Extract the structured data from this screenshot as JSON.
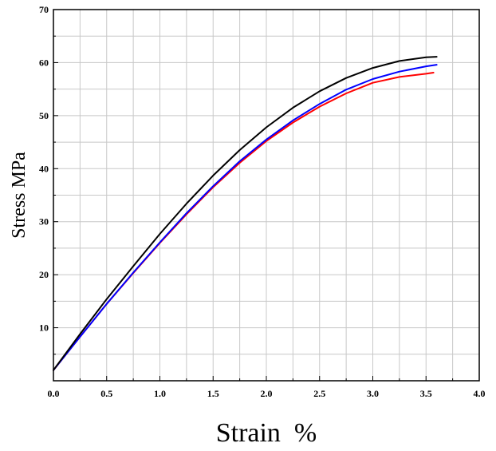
{
  "chart_data": {
    "type": "line",
    "title": "",
    "xlabel": "Strain  %",
    "ylabel": "Stress MPa",
    "xlim": [
      0,
      4.0
    ],
    "ylim": [
      0,
      70
    ],
    "x_ticks": [
      0.0,
      0.5,
      1.0,
      1.5,
      2.0,
      2.5,
      3.0,
      3.5,
      4.0
    ],
    "x_tick_labels": [
      "0.0",
      "0.5",
      "1.0",
      "1.5",
      "2.0",
      "2.5",
      "3.0",
      "3.5",
      "4.0"
    ],
    "y_ticks": [
      10,
      20,
      30,
      40,
      50,
      60,
      70
    ],
    "y_tick_labels": [
      "10",
      "20",
      "30",
      "40",
      "50",
      "60",
      "70"
    ],
    "grid": true,
    "legend": "none",
    "series": [
      {
        "color": "#ff0000",
        "x": [
          0.0,
          0.25,
          0.5,
          0.75,
          1.0,
          1.25,
          1.5,
          1.75,
          2.0,
          2.25,
          2.5,
          2.75,
          3.0,
          3.25,
          3.5,
          3.57
        ],
        "y": [
          2.0,
          8.3,
          14.5,
          20.3,
          26.0,
          31.4,
          36.5,
          41.1,
          45.2,
          48.7,
          51.7,
          54.2,
          56.2,
          57.3,
          57.9,
          58.1
        ]
      },
      {
        "color": "#0000ff",
        "x": [
          0.0,
          0.25,
          0.5,
          0.75,
          1.0,
          1.25,
          1.5,
          1.75,
          2.0,
          2.25,
          2.5,
          2.75,
          3.0,
          3.25,
          3.5,
          3.6
        ],
        "y": [
          2.0,
          8.3,
          14.5,
          20.4,
          26.1,
          31.6,
          36.7,
          41.4,
          45.5,
          49.1,
          52.2,
          54.9,
          56.9,
          58.3,
          59.3,
          59.6
        ]
      },
      {
        "color": "#000000",
        "x": [
          0.0,
          0.25,
          0.5,
          0.75,
          1.0,
          1.25,
          1.5,
          1.75,
          2.0,
          2.25,
          2.5,
          2.75,
          3.0,
          3.25,
          3.5,
          3.6
        ],
        "y": [
          2.0,
          8.8,
          15.4,
          21.6,
          27.7,
          33.4,
          38.7,
          43.5,
          47.8,
          51.5,
          54.6,
          57.1,
          59.0,
          60.3,
          61.0,
          61.1
        ]
      }
    ]
  }
}
